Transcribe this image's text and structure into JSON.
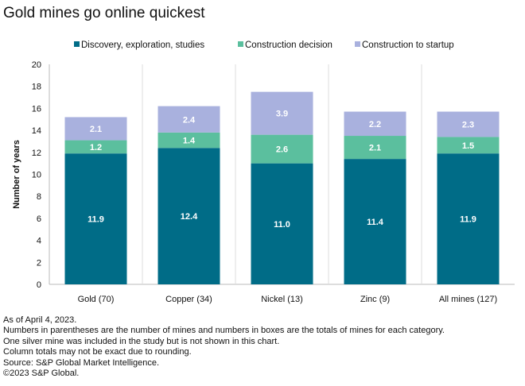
{
  "chart_data": {
    "type": "bar",
    "stacked": true,
    "title": "Gold mines go online quickest",
    "ylabel": "Number of years",
    "xlabel": "",
    "ylim": [
      0,
      20
    ],
    "yticks": [
      0,
      2,
      4,
      6,
      8,
      10,
      12,
      14,
      16,
      18,
      20
    ],
    "grid": false,
    "legend_placement": "top",
    "categories": [
      "Gold (70)",
      "Copper (34)",
      "Nickel (13)",
      "Zinc (9)",
      "All mines (127)"
    ],
    "series": [
      {
        "name": "Discovery, exploration, studies",
        "color": "#006c87",
        "values": [
          11.9,
          12.4,
          11.0,
          11.4,
          11.9
        ],
        "labels": [
          "11.9",
          "12.4",
          "11.0",
          "11.4",
          "11.9"
        ]
      },
      {
        "name": "Construction decision",
        "color": "#5bbf9e",
        "values": [
          1.2,
          1.4,
          2.6,
          2.1,
          1.5
        ],
        "labels": [
          "1.2",
          "1.4",
          "2.6",
          "2.1",
          "1.5"
        ]
      },
      {
        "name": "Construction to startup",
        "color": "#a9b1de",
        "values": [
          2.1,
          2.4,
          3.9,
          2.2,
          2.3
        ],
        "labels": [
          "2.1",
          "2.4",
          "3.9",
          "2.2",
          "2.3"
        ]
      }
    ]
  },
  "notes": [
    "As of April 4, 2023.",
    "Numbers in parentheses are the number of mines and numbers in boxes are the totals of mines for each category.",
    "One silver mine was included in the study but is not shown in this chart.",
    "Column totals may not be exact due to rounding.",
    "Source: S&P Global Market Intelligence.",
    "©2023 S&P Global."
  ]
}
